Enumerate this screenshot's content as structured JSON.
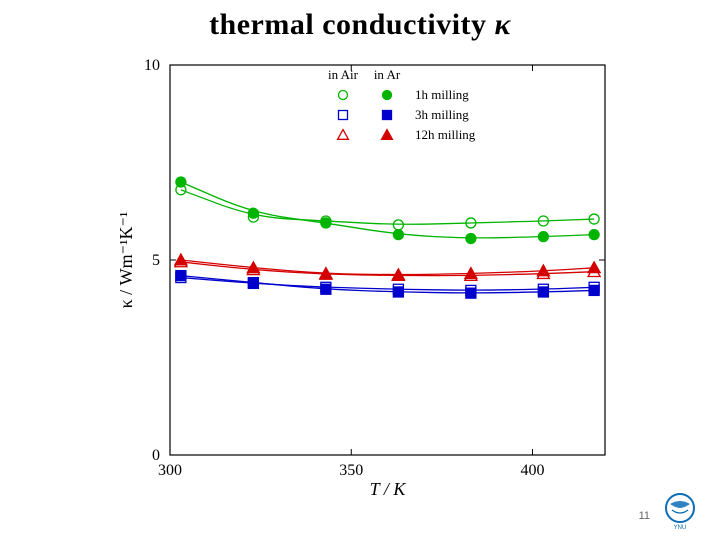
{
  "title_main": "thermal conductivity",
  "title_kappa": "κ",
  "page_number": "11",
  "chart": {
    "type": "scatter+line",
    "xlim": [
      300,
      420
    ],
    "ylim": [
      0,
      10
    ],
    "xticks": [
      300,
      350,
      400
    ],
    "yticks": [
      0,
      5,
      10
    ],
    "xlabel": "T / K",
    "ylabel": "κ / Wm⁻¹K⁻¹",
    "axis_color": "#000000",
    "tick_fontsize": 16,
    "label_fontsize": 18,
    "background": "#ffffff",
    "legend": {
      "header_air": "in Air",
      "header_ar": "in Ar",
      "rows": [
        {
          "label": "1h milling",
          "color": "#00b400",
          "open": "circle",
          "filled": "circle"
        },
        {
          "label": "3h milling",
          "color": "#0000cc",
          "open": "square",
          "filled": "square"
        },
        {
          "label": "12h milling",
          "color": "#d40000",
          "open": "triangle",
          "filled": "triangle"
        }
      ],
      "text_color": "#000000",
      "fontsize": 13
    },
    "series": [
      {
        "id": "1h-air",
        "color": "#00b400",
        "marker": "circle",
        "filled": false,
        "points": [
          [
            303,
            6.8
          ],
          [
            323,
            6.1
          ],
          [
            343,
            6.0
          ],
          [
            363,
            5.9
          ],
          [
            383,
            5.95
          ],
          [
            403,
            6.0
          ],
          [
            417,
            6.05
          ]
        ]
      },
      {
        "id": "1h-ar",
        "color": "#00b400",
        "marker": "circle",
        "filled": true,
        "points": [
          [
            303,
            7.0
          ],
          [
            323,
            6.2
          ],
          [
            343,
            5.95
          ],
          [
            363,
            5.65
          ],
          [
            383,
            5.55
          ],
          [
            403,
            5.6
          ],
          [
            417,
            5.65
          ]
        ]
      },
      {
        "id": "3h-air",
        "color": "#0000cc",
        "marker": "square",
        "filled": false,
        "points": [
          [
            303,
            4.55
          ],
          [
            323,
            4.4
          ],
          [
            343,
            4.3
          ],
          [
            363,
            4.25
          ],
          [
            383,
            4.22
          ],
          [
            403,
            4.25
          ],
          [
            417,
            4.3
          ]
        ]
      },
      {
        "id": "3h-ar",
        "color": "#0000cc",
        "marker": "square",
        "filled": true,
        "points": [
          [
            303,
            4.6
          ],
          [
            323,
            4.42
          ],
          [
            343,
            4.25
          ],
          [
            363,
            4.18
          ],
          [
            383,
            4.15
          ],
          [
            403,
            4.18
          ],
          [
            417,
            4.22
          ]
        ]
      },
      {
        "id": "12h-air",
        "color": "#d40000",
        "marker": "triangle",
        "filled": false,
        "points": [
          [
            303,
            4.95
          ],
          [
            323,
            4.75
          ],
          [
            343,
            4.63
          ],
          [
            363,
            4.6
          ],
          [
            383,
            4.6
          ],
          [
            403,
            4.65
          ],
          [
            417,
            4.7
          ]
        ]
      },
      {
        "id": "12h-ar",
        "color": "#d40000",
        "marker": "triangle",
        "filled": true,
        "points": [
          [
            303,
            5.0
          ],
          [
            323,
            4.8
          ],
          [
            343,
            4.65
          ],
          [
            363,
            4.62
          ],
          [
            383,
            4.65
          ],
          [
            403,
            4.72
          ],
          [
            417,
            4.8
          ]
        ]
      }
    ],
    "curve_width": 1.3,
    "marker_size": 5
  },
  "logo": {
    "ring_outer": "#0a6db8",
    "ring_inner": "#ffffff",
    "accent": "#0a6db8",
    "label": "YNU",
    "label_color": "#0a6db8"
  }
}
